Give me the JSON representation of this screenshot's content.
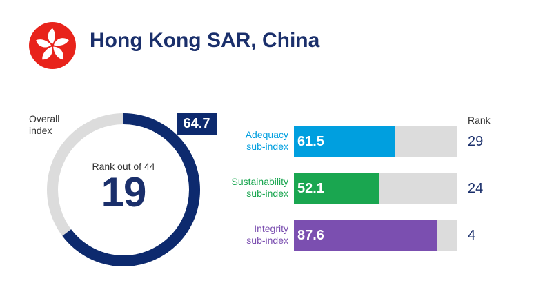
{
  "header": {
    "country": "Hong Kong SAR, China",
    "flag_icon": "hong-kong-bauhinia-flag-icon"
  },
  "colors": {
    "navy": "#0d2a6e",
    "flag_red": "#e8231b",
    "track": "#dcdcdc"
  },
  "chart_data": [
    {
      "type": "pie",
      "label": "Overall\nindex",
      "value": 64.7,
      "max": 100,
      "rank_caption": "Rank out of 44",
      "rank": "19"
    },
    {
      "type": "bar",
      "orientation": "horizontal",
      "rank_header": "Rank",
      "xlim": [
        0,
        100
      ],
      "categories": [
        "Adequacy\nsub-index",
        "Sustainability\nsub-index",
        "Integrity\nsub-index"
      ],
      "values": [
        61.5,
        52.1,
        87.6
      ],
      "ranks": [
        "29",
        "24",
        "4"
      ],
      "colors": [
        "#009fdf",
        "#1aa650",
        "#7b4fb0"
      ]
    }
  ]
}
